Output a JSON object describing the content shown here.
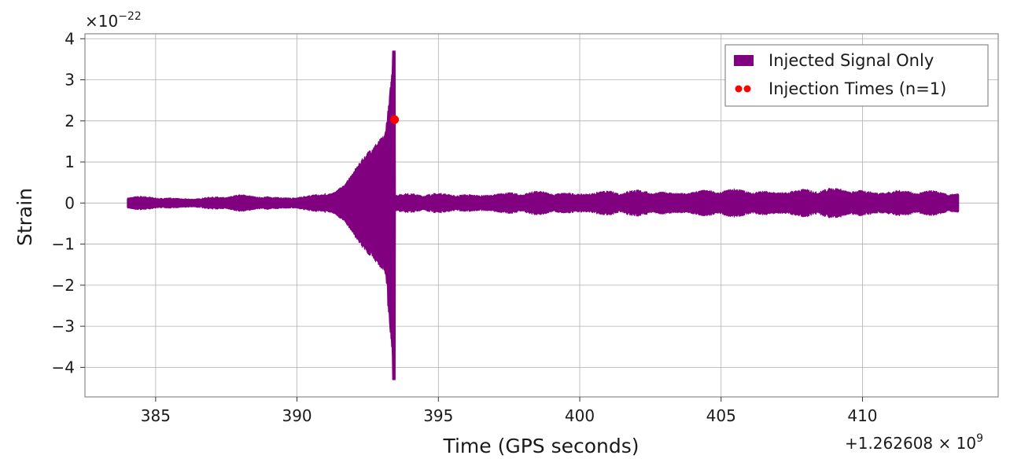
{
  "chart_data": {
    "type": "line",
    "xlabel": "Time (GPS seconds)",
    "ylabel": "Strain",
    "x_offset_label": "+1.262608 × 10",
    "x_offset_exponent": "9",
    "y_scale_label": "×10",
    "y_scale_exponent": "−22",
    "xlim": [
      382.5,
      414.8
    ],
    "ylim": [
      -4.72,
      4.12
    ],
    "x_ticks": [
      385,
      390,
      395,
      400,
      405,
      410
    ],
    "x_tick_labels": [
      "385",
      "390",
      "395",
      "400",
      "405",
      "410"
    ],
    "y_ticks": [
      -4,
      -3,
      -2,
      -1,
      0,
      1,
      2,
      3,
      4
    ],
    "y_tick_labels": [
      "−4",
      "−3",
      "−2",
      "−1",
      "0",
      "1",
      "2",
      "3",
      "4"
    ],
    "grid": true,
    "legend_position": "top-right",
    "series": [
      {
        "name": "Injected Signal Only",
        "kind": "filled-waveform",
        "color": "#800080",
        "x_start": 384.0,
        "x_end": 413.4,
        "baseline_amplitude": 0.12,
        "envelope": [
          [
            384.0,
            0.1
          ],
          [
            386.5,
            0.08
          ],
          [
            388.0,
            0.12
          ],
          [
            390.0,
            0.1
          ],
          [
            390.8,
            0.14
          ],
          [
            391.3,
            0.25
          ],
          [
            391.7,
            0.45
          ],
          [
            392.0,
            0.75
          ],
          [
            392.3,
            1.05
          ],
          [
            392.6,
            1.3
          ],
          [
            392.9,
            1.5
          ],
          [
            393.1,
            1.65
          ],
          [
            393.25,
            2.4
          ],
          [
            393.35,
            3.2
          ],
          [
            393.42,
            4.3
          ],
          [
            393.48,
            0.15
          ],
          [
            395.0,
            0.14
          ],
          [
            400.0,
            0.18
          ],
          [
            405.0,
            0.2
          ],
          [
            410.0,
            0.22
          ],
          [
            413.4,
            0.16
          ]
        ],
        "peak_positive": 3.7,
        "peak_negative": -4.3
      },
      {
        "name": "Injection Times (n=1)",
        "kind": "scatter",
        "color": "#ff0000",
        "points": [
          [
            393.45,
            2.03
          ]
        ]
      }
    ]
  }
}
